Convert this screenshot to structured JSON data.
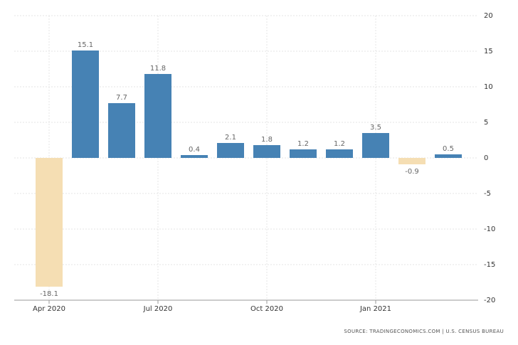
{
  "chart_data": {
    "type": "bar",
    "categories": [
      "Apr 2020",
      null,
      null,
      "Jul 2020",
      null,
      null,
      "Oct 2020",
      null,
      null,
      "Jan 2021",
      null,
      null
    ],
    "values": [
      -18.1,
      15.1,
      7.7,
      11.8,
      0.4,
      2.1,
      1.8,
      1.2,
      1.2,
      3.5,
      -0.9,
      0.5
    ],
    "color": "#4682b4",
    "negative_color": "#f5deb3",
    "ylim": [
      -20,
      20
    ],
    "yticks": [
      -20,
      -15,
      -10,
      -5,
      0,
      5,
      10,
      15,
      20
    ],
    "grid": true,
    "source": "SOURCE: TRADINGECONOMICS.COM | U.S. CENSUS BUREAU"
  }
}
